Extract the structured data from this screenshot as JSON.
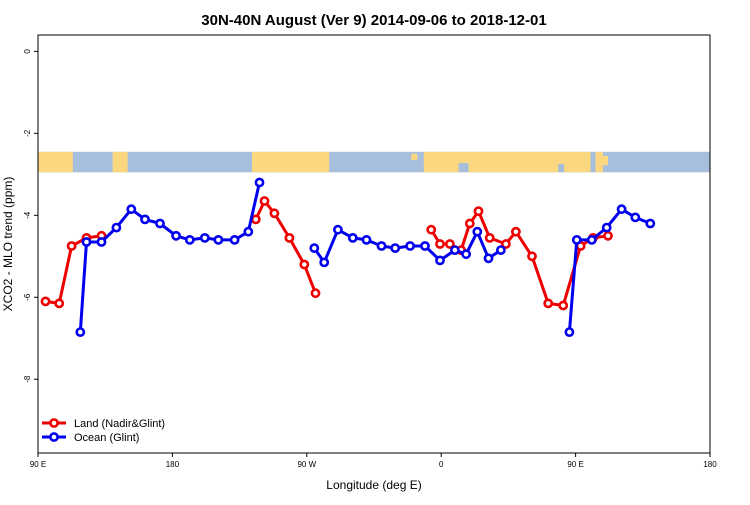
{
  "chart_data": {
    "type": "line",
    "title": "30N-40N August (Ver 9)   2014-09-06 to 2018-12-01",
    "xlabel": "Longitude (deg E)",
    "ylabel": "XCO2 - MLO trend (ppm)",
    "xlim": [
      -90,
      180
    ],
    "ylim": [
      -9.8,
      0.4
    ],
    "x_ticks": [
      {
        "value": -90,
        "label": "90 E"
      },
      {
        "value": -36,
        "label": "180"
      },
      {
        "value": 18,
        "label": "90 W"
      },
      {
        "value": 72,
        "label": "0"
      },
      {
        "value": 126,
        "label": "90 E"
      },
      {
        "value": 180,
        "label": "180"
      }
    ],
    "y_ticks": [
      0,
      -2,
      -4,
      -6,
      -8
    ],
    "grid": false,
    "legend_position": "bottom-left",
    "background_band": {
      "description": "world map strip 30N-40N",
      "y_range": [
        -2.45,
        -2.95
      ],
      "land_color": "#fbd880",
      "ocean_color": "#a8bedd"
    },
    "series": [
      {
        "name": "Land (Nadir&Glint)",
        "color": "#ee0000",
        "segments": [
          [
            [
              -87,
              -6.1
            ],
            [
              -81.5,
              -6.15
            ],
            [
              -76.5,
              -4.75
            ],
            [
              -70.5,
              -4.55
            ],
            [
              -64.5,
              -4.5
            ]
          ],
          [
            [
              -2.5,
              -4.1
            ],
            [
              1,
              -3.65
            ],
            [
              5,
              -3.95
            ],
            [
              11,
              -4.55
            ],
            [
              17,
              -5.2
            ],
            [
              21.5,
              -5.9
            ]
          ],
          [
            [
              68,
              -4.35
            ],
            [
              71.5,
              -4.7
            ],
            [
              75.5,
              -4.7
            ],
            [
              80,
              -4.85
            ],
            [
              83.5,
              -4.2
            ],
            [
              87,
              -3.9
            ],
            [
              91.5,
              -4.55
            ],
            [
              98,
              -4.7
            ],
            [
              102,
              -4.4
            ],
            [
              108.5,
              -5.0
            ],
            [
              115,
              -6.15
            ],
            [
              121,
              -6.2
            ],
            [
              128,
              -4.75
            ],
            [
              133,
              -4.55
            ],
            [
              139,
              -4.5
            ]
          ]
        ]
      },
      {
        "name": "Ocean (Glint)",
        "color": "#0000ee",
        "segments": [
          [
            [
              -73,
              -6.85
            ],
            [
              -70.5,
              -4.65
            ],
            [
              -64.5,
              -4.65
            ],
            [
              -58.5,
              -4.3
            ],
            [
              -52.5,
              -3.85
            ],
            [
              -47,
              -4.1
            ],
            [
              -41,
              -4.2
            ],
            [
              -34.5,
              -4.5
            ],
            [
              -29,
              -4.6
            ],
            [
              -23,
              -4.55
            ],
            [
              -17.5,
              -4.6
            ],
            [
              -11,
              -4.6
            ],
            [
              -5.5,
              -4.4
            ],
            [
              -1,
              -3.2
            ]
          ],
          [
            [
              21,
              -4.8
            ],
            [
              25,
              -5.15
            ],
            [
              30.5,
              -4.35
            ],
            [
              36.5,
              -4.55
            ],
            [
              42,
              -4.6
            ],
            [
              48,
              -4.75
            ],
            [
              53.5,
              -4.8
            ],
            [
              59.5,
              -4.75
            ],
            [
              65.5,
              -4.75
            ],
            [
              71.5,
              -5.1
            ],
            [
              77.5,
              -4.85
            ],
            [
              82,
              -4.95
            ],
            [
              86.5,
              -4.4
            ],
            [
              91,
              -5.05
            ],
            [
              96,
              -4.85
            ]
          ],
          [
            [
              123.5,
              -6.85
            ],
            [
              126.5,
              -4.6
            ],
            [
              132.5,
              -4.6
            ],
            [
              138.5,
              -4.3
            ],
            [
              144.5,
              -3.85
            ],
            [
              150,
              -4.05
            ],
            [
              156,
              -4.2
            ]
          ]
        ]
      }
    ]
  }
}
